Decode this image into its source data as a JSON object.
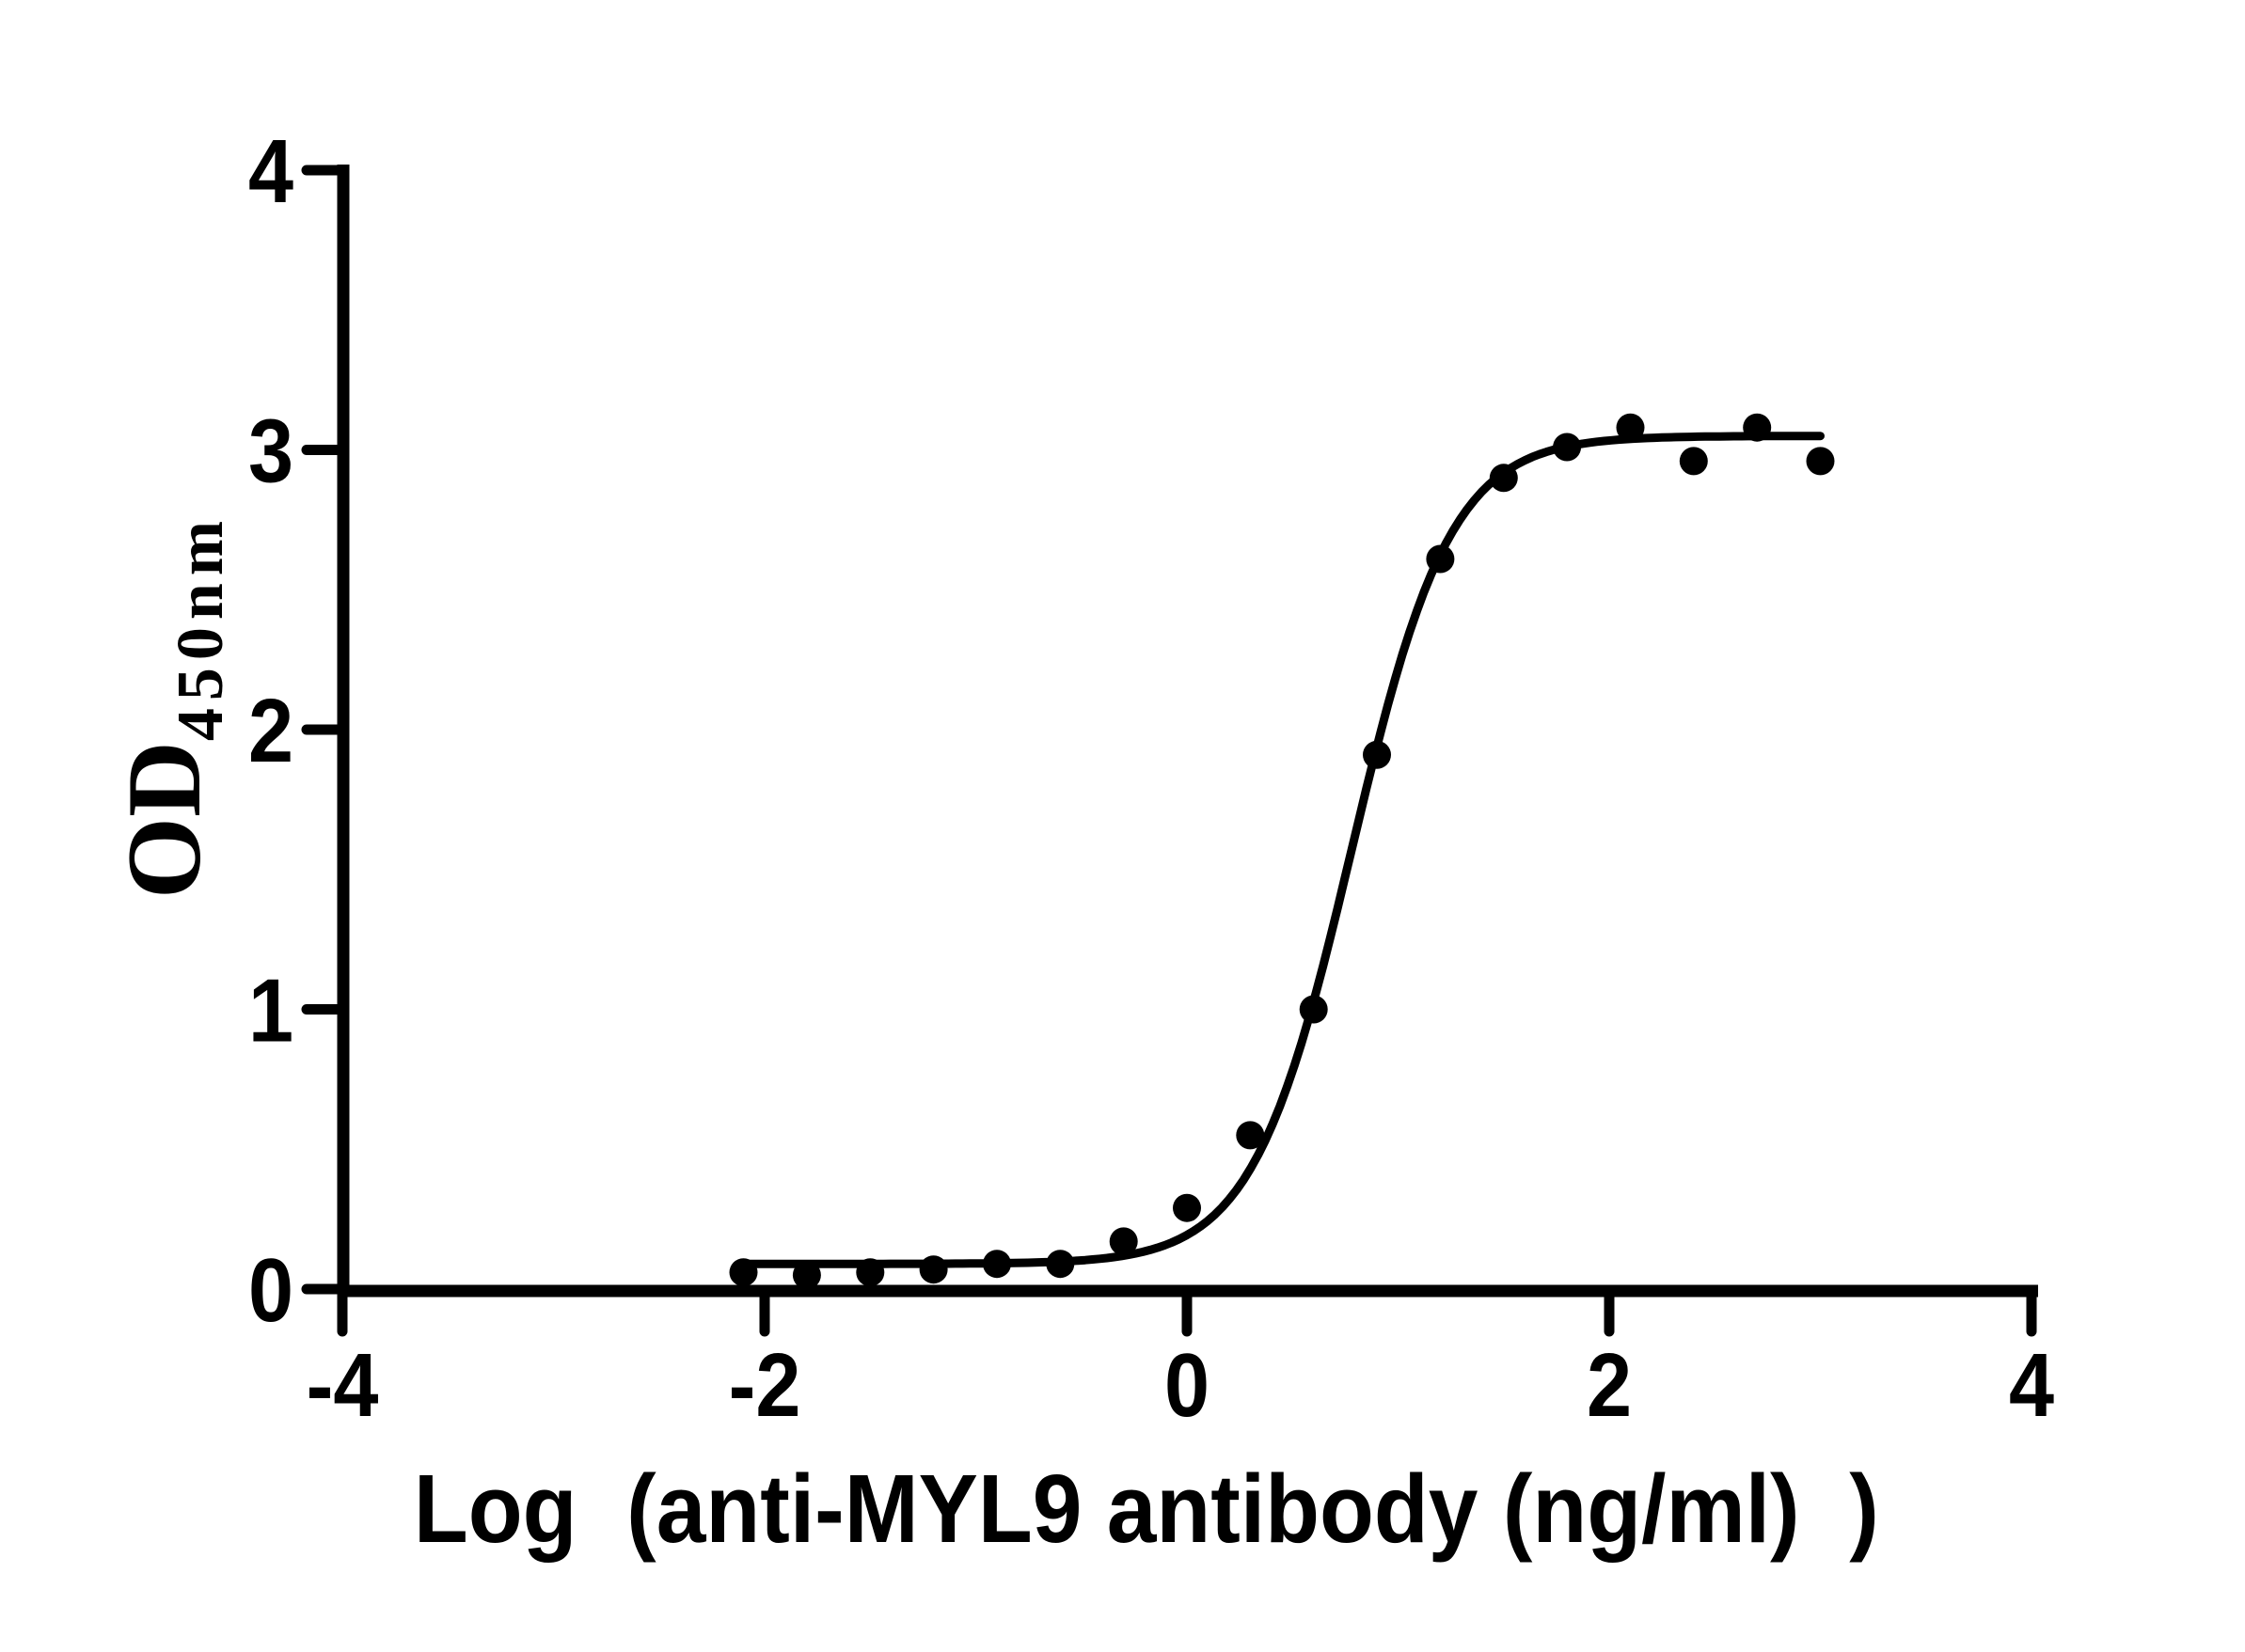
{
  "chart_data": {
    "type": "scatter",
    "xlabel": "Log （anti-MYL9 antibody（ng/ml） ）",
    "ylabel": "OD450nm",
    "ylabel_main": "OD",
    "ylabel_sub": "450nm",
    "xlim": [
      -4,
      4
    ],
    "ylim": [
      0,
      4
    ],
    "xticks": [
      -4,
      -2,
      0,
      2,
      4
    ],
    "yticks": [
      0,
      1,
      2,
      3,
      4
    ],
    "xtick_labels": [
      "-4",
      "-2",
      "0",
      "2",
      "4"
    ],
    "ytick_labels": [
      "0",
      "1",
      "2",
      "3",
      "4"
    ],
    "grid": false,
    "legend": false,
    "marker": "filled-circle",
    "point_color": "#000000",
    "line_color": "#000000",
    "axis_color": "#000000",
    "background": "#ffffff",
    "x": [
      -2.1,
      -1.8,
      -1.5,
      -1.2,
      -0.9,
      -0.6,
      -0.3,
      0.0,
      0.3,
      0.6,
      0.9,
      1.2,
      1.5,
      1.8,
      2.1,
      2.4,
      2.7,
      3.0
    ],
    "y": [
      0.06,
      0.05,
      0.06,
      0.07,
      0.09,
      0.09,
      0.17,
      0.29,
      0.55,
      1.0,
      1.91,
      2.61,
      2.9,
      3.01,
      3.08,
      2.96,
      3.08,
      2.96
    ],
    "fit_curve": {
      "model": "4PL sigmoidal dose-response",
      "bottom": 0.09,
      "top": 3.05,
      "logEC50": 0.78,
      "hillslope": 1.85,
      "x_start": -2.12,
      "x_end": 3.0
    }
  }
}
